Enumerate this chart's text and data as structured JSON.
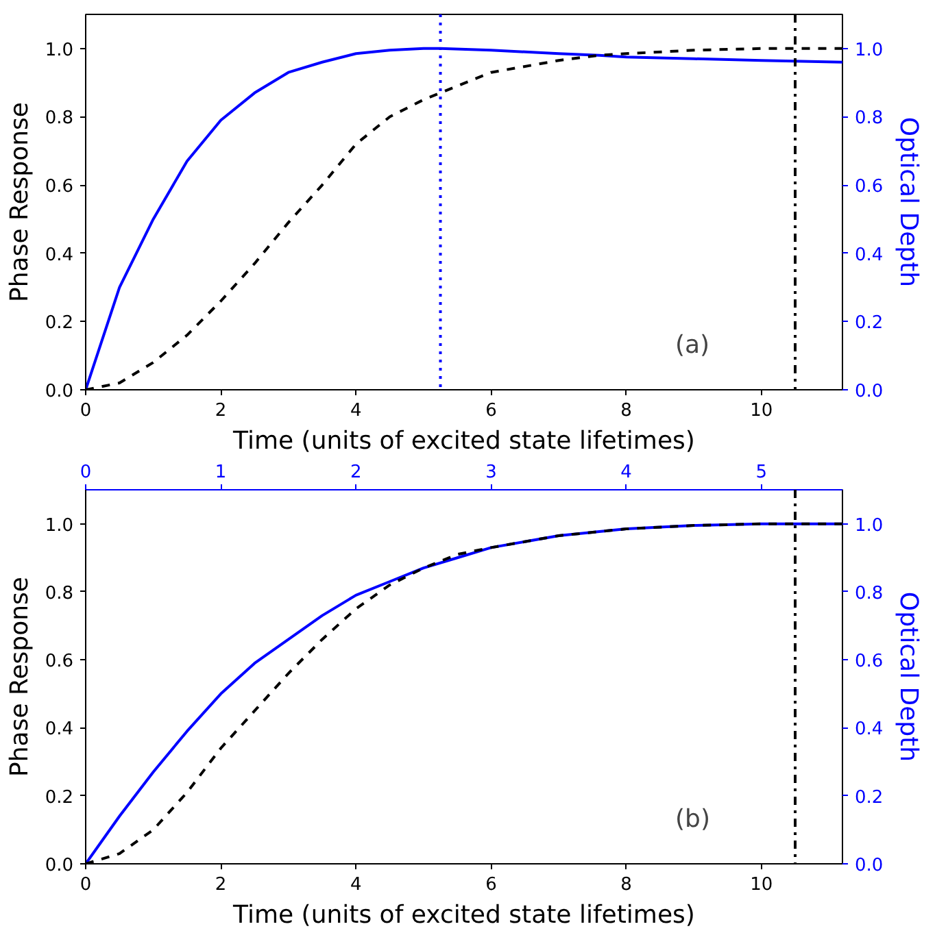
{
  "chart_data": [
    {
      "type": "line",
      "xlabel": "Time (units of excited state lifetimes)",
      "ylabel": "Phase Response",
      "y2label": "Optical Depth",
      "xlim": [
        0,
        11.2
      ],
      "xticks": [
        0,
        2,
        4,
        6,
        8,
        10
      ],
      "ylim": [
        0,
        1.1
      ],
      "yticks": [
        {
          "value": 0,
          "label": "0.0"
        },
        {
          "value": 0.2,
          "label": "0.2"
        },
        {
          "value": 0.4,
          "label": "0.4"
        },
        {
          "value": 0.6,
          "label": "0.6"
        },
        {
          "value": 0.8,
          "label": "0.8"
        },
        {
          "value": 1,
          "label": "1.0"
        }
      ],
      "y2lim": [
        0,
        1.1
      ],
      "y2ticks": [
        {
          "value": 0,
          "label": "0.0"
        },
        {
          "value": 0.2,
          "label": "0.2"
        },
        {
          "value": 0.4,
          "label": "0.4"
        },
        {
          "value": 0.6,
          "label": "0.6"
        },
        {
          "value": 0.8,
          "label": "0.8"
        },
        {
          "value": 1,
          "label": "1.0"
        }
      ],
      "x": [
        0,
        0.5,
        1,
        1.5,
        2,
        2.5,
        3,
        3.5,
        4,
        4.5,
        5,
        5.25,
        6,
        7,
        7.6,
        8,
        9,
        10,
        11.2
      ],
      "series": [
        {
          "color": "#000000",
          "line_style": "dashed",
          "values": [
            0,
            0.02,
            0.08,
            0.16,
            0.26,
            0.37,
            0.49,
            0.6,
            0.72,
            0.8,
            0.85,
            0.87,
            0.93,
            0.965,
            0.98,
            0.985,
            0.995,
            1.0,
            1.0
          ]
        },
        {
          "color": "#0000ff",
          "line_style": "solid",
          "axis": "y2",
          "values": [
            0,
            0.3,
            0.5,
            0.67,
            0.79,
            0.87,
            0.93,
            0.96,
            0.985,
            0.995,
            1.0,
            1.0,
            0.995,
            0.985,
            0.98,
            0.975,
            0.97,
            0.965,
            0.96
          ]
        }
      ],
      "ref_lines": [
        {
          "axis": "x",
          "value": 5.25,
          "color": "#0000ff",
          "line_style": "dotted"
        },
        {
          "axis": "x",
          "value": 10.5,
          "color": "#000000",
          "line_style": "dashdot"
        }
      ],
      "annotations": [
        "(a)"
      ],
      "grid": false
    },
    {
      "type": "line",
      "xlabel": "Time (units of excited state lifetimes)",
      "ylabel": "Phase Response",
      "y2label": "Optical Depth",
      "xlim": [
        0,
        11.2
      ],
      "xticks": [
        0,
        2,
        4,
        6,
        8,
        10
      ],
      "x2lim": [
        0,
        5.6
      ],
      "x2ticks": [
        0,
        1,
        2,
        3,
        4,
        5
      ],
      "ylim": [
        0,
        1.1
      ],
      "yticks": [
        {
          "value": 0,
          "label": "0.0"
        },
        {
          "value": 0.2,
          "label": "0.2"
        },
        {
          "value": 0.4,
          "label": "0.4"
        },
        {
          "value": 0.6,
          "label": "0.6"
        },
        {
          "value": 0.8,
          "label": "0.8"
        },
        {
          "value": 1,
          "label": "1.0"
        }
      ],
      "y2lim": [
        0,
        1.1
      ],
      "y2ticks": [
        {
          "value": 0,
          "label": "0.0"
        },
        {
          "value": 0.2,
          "label": "0.2"
        },
        {
          "value": 0.4,
          "label": "0.4"
        },
        {
          "value": 0.6,
          "label": "0.6"
        },
        {
          "value": 0.8,
          "label": "0.8"
        },
        {
          "value": 1,
          "label": "1.0"
        }
      ],
      "x": [
        0,
        0.5,
        1,
        1.5,
        2,
        2.5,
        3,
        3.5,
        4,
        4.5,
        5,
        5.5,
        6,
        7,
        8,
        9,
        10,
        11.2
      ],
      "series": [
        {
          "color": "#000000",
          "line_style": "dashed",
          "values": [
            0,
            0.03,
            0.1,
            0.21,
            0.34,
            0.45,
            0.56,
            0.66,
            0.75,
            0.82,
            0.87,
            0.91,
            0.93,
            0.965,
            0.985,
            0.995,
            1.0,
            1.0
          ]
        },
        {
          "color": "#0000ff",
          "line_style": "solid",
          "axis": "y2",
          "values": [
            0,
            0.14,
            0.27,
            0.39,
            0.5,
            0.59,
            0.66,
            0.73,
            0.79,
            0.83,
            0.87,
            0.9,
            0.93,
            0.965,
            0.985,
            0.995,
            1.0,
            1.0
          ]
        }
      ],
      "ref_lines": [
        {
          "axis": "x",
          "value": 10.5,
          "color": "#000000",
          "line_style": "dashdot"
        }
      ],
      "annotations": [
        "(b)"
      ],
      "grid": false
    }
  ]
}
